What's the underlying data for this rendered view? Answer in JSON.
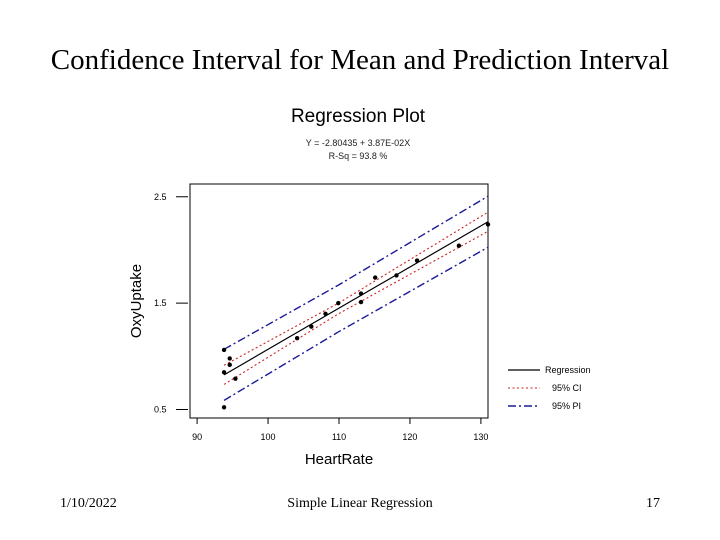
{
  "slide": {
    "title": "Confidence Interval for Mean and Prediction Interval",
    "footer_date": "1/10/2022",
    "footer_center": "Simple Linear Regression",
    "page_number": "17"
  },
  "chart_data": {
    "type": "scatter",
    "title": "Regression Plot",
    "subtitle_lines": [
      "Y = -2.80435 + 3.87E-02X",
      "R-Sq = 93.8 %"
    ],
    "xlabel": "HeartRate",
    "ylabel": "OxyUptake",
    "xlim": [
      89,
      131
    ],
    "ylim": [
      0.42,
      2.62
    ],
    "x_ticks": [
      90,
      100,
      110,
      120,
      130
    ],
    "y_ticks": [
      0.5,
      1.5,
      2.5
    ],
    "y_tick_labels": [
      "0.5",
      "1.5",
      "2.5"
    ],
    "grid": false,
    "legend_position": "right",
    "regression": {
      "intercept": -2.80435,
      "slope": 0.0387
    },
    "ci_half_width": [
      0.09,
      0.05,
      0.09
    ],
    "pi_half_width": [
      0.24,
      0.22,
      0.24
    ],
    "band_x": [
      93.8,
      110,
      131
    ],
    "series": [
      {
        "name": "points",
        "x": [
          93.8,
          93.8,
          93.8,
          94.6,
          94.6,
          95.4,
          104.1,
          106.1,
          108.1,
          109.9,
          113.1,
          113.1,
          115.1,
          118.1,
          121.0,
          126.9,
          131.0
        ],
        "y": [
          0.52,
          0.85,
          1.06,
          0.92,
          0.98,
          0.79,
          1.17,
          1.28,
          1.4,
          1.5,
          1.51,
          1.59,
          1.74,
          1.76,
          1.9,
          2.04,
          2.24
        ]
      }
    ],
    "legend": [
      {
        "label": "Regression",
        "style": "solid",
        "color": "#000000"
      },
      {
        "label": "95% CI",
        "style": "dotted",
        "color": "#cc2222"
      },
      {
        "label": "95% PI",
        "style": "dashdot",
        "color": "#1a1a99"
      }
    ]
  }
}
